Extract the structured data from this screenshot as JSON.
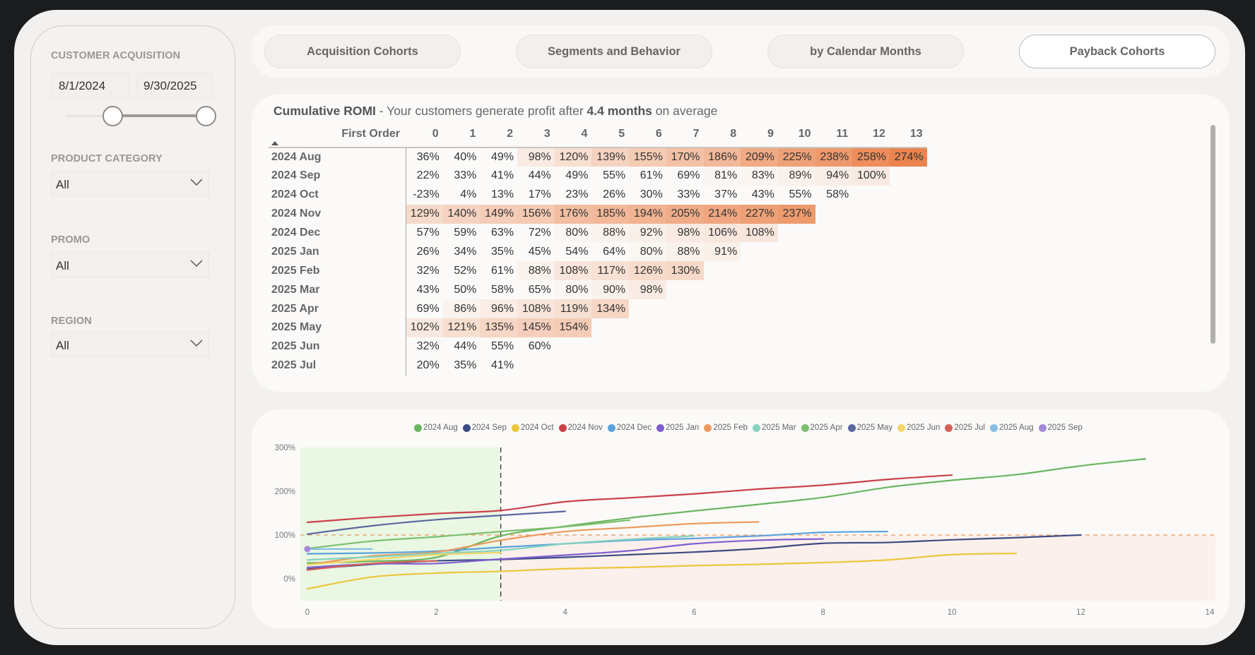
{
  "sidebar": {
    "customer_acquisition": {
      "label": "CUSTOMER ACQUISITION",
      "start_date": "8/1/2024",
      "end_date": "9/30/2025"
    },
    "filters": [
      {
        "label": "PRODUCT CATEGORY",
        "value": "All"
      },
      {
        "label": "PROMO",
        "value": "All"
      },
      {
        "label": "REGION",
        "value": "All"
      }
    ]
  },
  "tabs": [
    {
      "label": "Acquisition Cohorts",
      "active": false
    },
    {
      "label": "Segments and Behavior",
      "active": false
    },
    {
      "label": "by Calendar Months",
      "active": false
    },
    {
      "label": "Payback Cohorts",
      "active": true
    }
  ],
  "romi_table": {
    "title_bold": "Cumulative ROMI",
    "title_text": " - Your customers generate profit after ",
    "title_highlight": "4.4 months",
    "title_suffix": " on average",
    "row_header": "First Order",
    "columns": [
      "0",
      "1",
      "2",
      "3",
      "4",
      "5",
      "6",
      "7",
      "8",
      "9",
      "10",
      "11",
      "12",
      "13"
    ],
    "rows": [
      {
        "label": "2024 Aug",
        "values": [
          36,
          40,
          49,
          98,
          120,
          139,
          155,
          170,
          186,
          209,
          225,
          238,
          258,
          274
        ]
      },
      {
        "label": "2024 Sep",
        "values": [
          22,
          33,
          41,
          44,
          49,
          55,
          61,
          69,
          81,
          83,
          89,
          94,
          100
        ]
      },
      {
        "label": "2024 Oct",
        "values": [
          -23,
          4,
          13,
          17,
          23,
          26,
          30,
          33,
          37,
          43,
          55,
          58
        ]
      },
      {
        "label": "2024 Nov",
        "values": [
          129,
          140,
          149,
          156,
          176,
          185,
          194,
          205,
          214,
          227,
          237
        ]
      },
      {
        "label": "2024 Dec",
        "values": [
          57,
          59,
          63,
          72,
          80,
          88,
          92,
          98,
          106,
          108
        ]
      },
      {
        "label": "2025 Jan",
        "values": [
          26,
          34,
          35,
          45,
          54,
          64,
          80,
          88,
          91
        ]
      },
      {
        "label": "2025 Feb",
        "values": [
          32,
          52,
          61,
          88,
          108,
          117,
          126,
          130
        ]
      },
      {
        "label": "2025 Mar",
        "values": [
          43,
          50,
          58,
          65,
          80,
          90,
          98
        ]
      },
      {
        "label": "2025 Apr",
        "values": [
          69,
          86,
          96,
          108,
          119,
          134
        ]
      },
      {
        "label": "2025 May",
        "values": [
          102,
          121,
          135,
          145,
          154
        ]
      },
      {
        "label": "2025 Jun",
        "values": [
          32,
          44,
          55,
          60
        ]
      },
      {
        "label": "2025 Jul",
        "values": [
          20,
          35,
          41
        ]
      }
    ],
    "heat_color_max": "#e8763a"
  },
  "chart_data": {
    "type": "line",
    "title": "",
    "xlabel": "",
    "ylabel": "",
    "xlim": [
      0,
      14
    ],
    "ylim": [
      -50,
      300
    ],
    "x_ticks": [
      "0",
      "2",
      "4",
      "6",
      "8",
      "10",
      "12",
      "14"
    ],
    "y_ticks": [
      "0%",
      "100%",
      "200%",
      "300%"
    ],
    "y_tick_values": [
      0,
      100,
      200,
      300
    ],
    "x_tick_values": [
      0,
      2,
      4,
      6,
      8,
      10,
      12,
      14
    ],
    "legend_position": "top",
    "breakeven_line": 100,
    "payback_marker_x": 3,
    "profit_zone_color": "#eaf7e3",
    "loss_zone_color": "#fbf0ec",
    "series": [
      {
        "name": "2024 Aug",
        "color": "#6ab55f",
        "values": [
          36,
          40,
          49,
          98,
          120,
          139,
          155,
          170,
          186,
          209,
          225,
          238,
          258,
          274
        ]
      },
      {
        "name": "2024 Sep",
        "color": "#3e4a82",
        "values": [
          22,
          33,
          41,
          44,
          49,
          55,
          61,
          69,
          81,
          83,
          89,
          94,
          100
        ]
      },
      {
        "name": "2024 Oct",
        "color": "#ecc63c",
        "values": [
          -23,
          4,
          13,
          17,
          23,
          26,
          30,
          33,
          37,
          43,
          55,
          58
        ]
      },
      {
        "name": "2024 Nov",
        "color": "#c9424a",
        "values": [
          129,
          140,
          149,
          156,
          176,
          185,
          194,
          205,
          214,
          227,
          237
        ]
      },
      {
        "name": "2024 Dec",
        "color": "#5aa2dd",
        "values": [
          57,
          59,
          63,
          72,
          80,
          88,
          92,
          98,
          106,
          108
        ]
      },
      {
        "name": "2025 Jan",
        "color": "#7f5fd0",
        "values": [
          26,
          34,
          35,
          45,
          54,
          64,
          80,
          88,
          91
        ]
      },
      {
        "name": "2025 Feb",
        "color": "#eb9a5e",
        "values": [
          32,
          52,
          61,
          88,
          108,
          117,
          126,
          130
        ]
      },
      {
        "name": "2025 Mar",
        "color": "#86d2bd",
        "values": [
          43,
          50,
          58,
          65,
          80,
          90,
          98
        ]
      },
      {
        "name": "2025 Apr",
        "color": "#7bbf6e",
        "values": [
          69,
          86,
          96,
          108,
          119,
          134
        ]
      },
      {
        "name": "2025 May",
        "color": "#5b679f",
        "values": [
          102,
          121,
          135,
          145,
          154
        ]
      },
      {
        "name": "2025 Jun",
        "color": "#f2d56a",
        "values": [
          32,
          44,
          55,
          60
        ]
      },
      {
        "name": "2025 Jul",
        "color": "#d8605a",
        "values": [
          20,
          35,
          41
        ]
      },
      {
        "name": "2025 Aug",
        "color": "#88bde6",
        "values": [
          68,
          68
        ]
      },
      {
        "name": "2025 Sep",
        "color": "#a48ad8",
        "values": [
          68
        ]
      }
    ]
  }
}
